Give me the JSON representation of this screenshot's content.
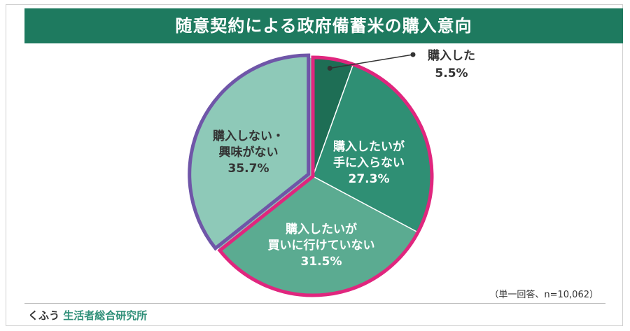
{
  "header": {
    "title": "随意契約による政府備蓄米の購入意向"
  },
  "footer": {
    "brand_prefix": "くふう",
    "brand_suffix": "生活者総合研究所"
  },
  "note": "（単一回答、n=10,062）",
  "colors": {
    "banner": "#1e7a5f",
    "slice_bought": "#1e6e55",
    "slice_want_unavailable": "#2f8f74",
    "slice_want_cannot_go": "#5bab91",
    "slice_not_interested": "#8ec9b8",
    "highlight_pink": "#e0267e",
    "highlight_purple": "#6f56a8"
  },
  "chart_data": {
    "type": "pie",
    "start": "12 o'clock",
    "direction": "clockwise",
    "unit": "%",
    "slices": [
      {
        "label_lines": [
          "購入した"
        ],
        "value": 5.5,
        "value_text": "5.5%"
      },
      {
        "label_lines": [
          "購入したいが",
          "手に入らない"
        ],
        "value": 27.3,
        "value_text": "27.3%"
      },
      {
        "label_lines": [
          "購入したいが",
          "買いに行けていない"
        ],
        "value": 31.5,
        "value_text": "31.5%"
      },
      {
        "label_lines": [
          "購入しない・",
          "興味がない"
        ],
        "value": 35.7,
        "value_text": "35.7%"
      }
    ]
  }
}
